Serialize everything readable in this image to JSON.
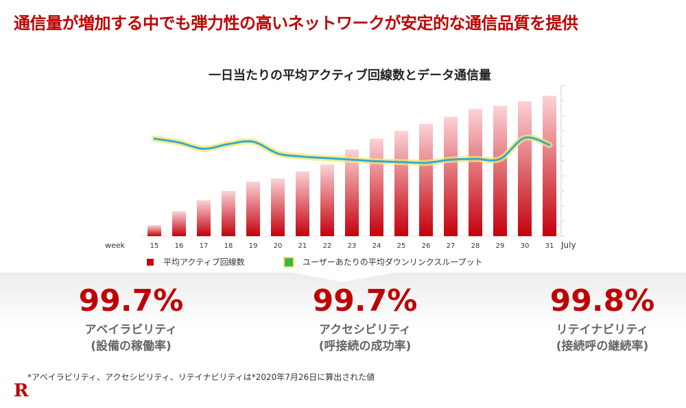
{
  "headline": "通信量が増加する中でも弾力性の高いネットワークが安定的な通信品質を提供",
  "chart_title": "一日当たりの平均アクティブ回線数とデータ通信量",
  "chart_data": {
    "type": "bar",
    "title": "一日当たりの平均アクティブ回線数とデータ通信量",
    "x_label": "week",
    "x_end_label": "July",
    "categories": [
      "15",
      "16",
      "17",
      "18",
      "19",
      "20",
      "21",
      "22",
      "23",
      "24",
      "25",
      "26",
      "27",
      "28",
      "29",
      "30",
      "31"
    ],
    "series": [
      {
        "name": "平均アクティブ回線数",
        "type": "bar",
        "values": [
          1.4,
          3.2,
          4.6,
          5.8,
          7.0,
          7.4,
          8.3,
          9.2,
          11.1,
          12.5,
          13.5,
          14.4,
          15.3,
          16.3,
          16.7,
          17.3,
          18.0
        ]
      },
      {
        "name": "ユーザーあたりの平均ダウンリンクスループット",
        "type": "line",
        "values": [
          12.5,
          12.0,
          11.2,
          11.8,
          12.1,
          10.6,
          10.2,
          10.0,
          9.8,
          9.6,
          9.5,
          9.4,
          9.8,
          9.9,
          9.9,
          12.6,
          11.7
        ]
      }
    ],
    "ylim": [
      0,
      20
    ],
    "colors": {
      "bar": "#c4000c",
      "line": "#36a9d6",
      "glow": "#f2e86a"
    }
  },
  "legend": {
    "bars": "平均アクティブ回線数",
    "line": "ユーザーあたりの平均ダウンリンクスループット"
  },
  "metrics": [
    {
      "value": "99.7%",
      "name": "アベイラビリティ",
      "sub": "(設備の稼働率)"
    },
    {
      "value": "99.7%",
      "name": "アクセシビリティ",
      "sub": "(呼接続の成功率)"
    },
    {
      "value": "99.8%",
      "name": "リテイナビリティ",
      "sub": "(接続呼の継続率)"
    }
  ],
  "footnote": "*アベイラビリティ、アクセシビリティ、リテイナビリティは*2020年7月26日に算出された値",
  "logo": "R"
}
